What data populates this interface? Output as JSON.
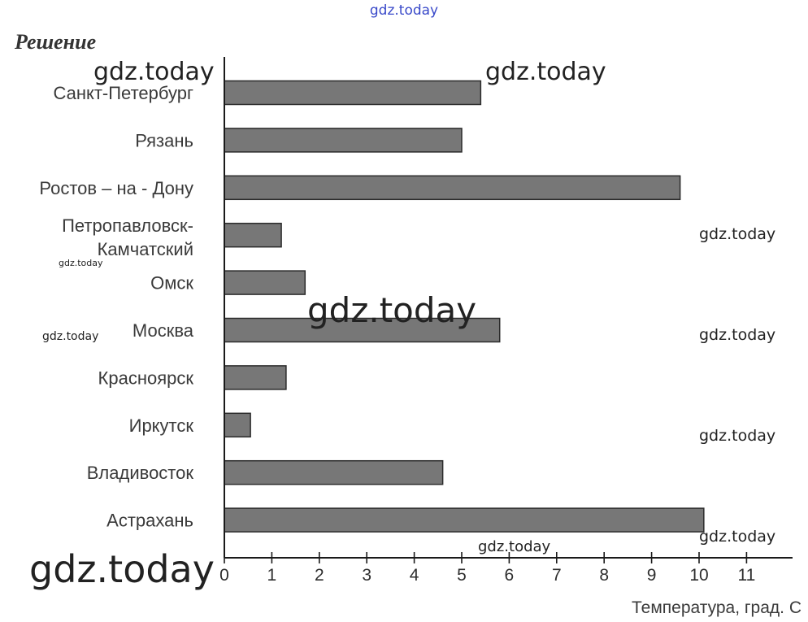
{
  "heading": "Решение",
  "watermarks": [
    "gdz.today"
  ],
  "chart_data": {
    "type": "bar",
    "orientation": "horizontal",
    "categories": [
      "Санкт-Петербург",
      "Рязань",
      "Ростов – на - Дону",
      "Петропавловск-Камчатский",
      "Омск",
      "Москва",
      "Красноярск",
      "Иркутск",
      "Владивосток",
      "Астрахань"
    ],
    "values": [
      5.4,
      5.0,
      9.6,
      1.2,
      1.7,
      5.8,
      1.3,
      0.55,
      4.6,
      10.1
    ],
    "xlabel": "Температура, град. С",
    "ylabel": "",
    "xlim": [
      0,
      12
    ],
    "xticks": [
      "0",
      "1",
      "2",
      "3",
      "4",
      "5",
      "6",
      "7",
      "8",
      "9",
      "10",
      "11"
    ],
    "grid": false,
    "bar_color": "#777777"
  }
}
